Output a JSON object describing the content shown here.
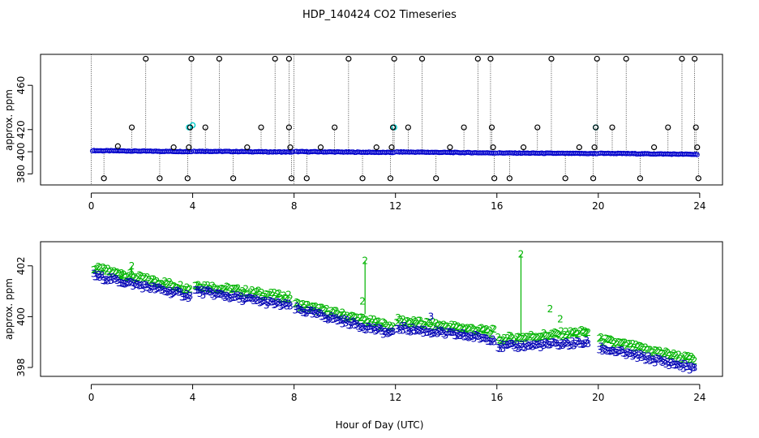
{
  "title": "HDP_140424  CO2 Timeseries",
  "xlabel": "Hour of Day (UTC)",
  "chart_data": [
    {
      "type": "scatter",
      "name": "top-panel",
      "ylabel": "approx. ppm",
      "xlim": [
        -2,
        24.9
      ],
      "ylim": [
        370,
        488
      ],
      "xticks": [
        0,
        4,
        8,
        12,
        16,
        20,
        24
      ],
      "yticks": [
        380,
        420,
        460
      ],
      "ytick_labels": [
        {
          "value": 380,
          "label": "380"
        },
        {
          "value": 400,
          "label": "400"
        },
        {
          "value": 420,
          "label": "420"
        },
        {
          "value": 460,
          "label": "460"
        }
      ],
      "baseline_series": {
        "name": "blue",
        "color": "#0000cc",
        "segments": [
          {
            "x0": 0.05,
            "x1": 3.95,
            "y0": 401.0,
            "y1": 400.1
          },
          {
            "x0": 4.05,
            "x1": 7.95,
            "y0": 400.5,
            "y1": 399.7
          },
          {
            "x0": 8.05,
            "x1": 11.95,
            "y0": 400.1,
            "y1": 399.3
          },
          {
            "x0": 12.05,
            "x1": 15.95,
            "y0": 399.8,
            "y1": 398.9
          },
          {
            "x0": 16.05,
            "x1": 19.95,
            "y0": 398.9,
            "y1": 398.3
          },
          {
            "x0": 20.05,
            "x1": 23.9,
            "y0": 398.6,
            "y1": 397.6
          }
        ]
      },
      "cyan_points": [
        {
          "x": 3.85,
          "y": 422
        },
        {
          "x": 4.0,
          "y": 424
        },
        {
          "x": 11.95,
          "y": 422
        },
        {
          "x": 19.9,
          "y": 422
        }
      ],
      "black_points": [
        {
          "x": 0.5,
          "y": 376
        },
        {
          "x": 1.05,
          "y": 405
        },
        {
          "x": 1.6,
          "y": 422
        },
        {
          "x": 2.15,
          "y": 484
        },
        {
          "x": 2.7,
          "y": 376
        },
        {
          "x": 3.25,
          "y": 404
        },
        {
          "x": 3.8,
          "y": 376
        },
        {
          "x": 3.85,
          "y": 404
        },
        {
          "x": 3.9,
          "y": 422
        },
        {
          "x": 3.95,
          "y": 484
        },
        {
          "x": 4.5,
          "y": 422
        },
        {
          "x": 5.05,
          "y": 484
        },
        {
          "x": 5.6,
          "y": 376
        },
        {
          "x": 6.15,
          "y": 404
        },
        {
          "x": 6.7,
          "y": 422
        },
        {
          "x": 7.25,
          "y": 484
        },
        {
          "x": 7.8,
          "y": 484
        },
        {
          "x": 7.8,
          "y": 422
        },
        {
          "x": 7.85,
          "y": 404
        },
        {
          "x": 7.9,
          "y": 376
        },
        {
          "x": 8.5,
          "y": 376
        },
        {
          "x": 9.05,
          "y": 404
        },
        {
          "x": 9.6,
          "y": 422
        },
        {
          "x": 10.15,
          "y": 484
        },
        {
          "x": 10.7,
          "y": 376
        },
        {
          "x": 11.25,
          "y": 404
        },
        {
          "x": 11.8,
          "y": 376
        },
        {
          "x": 11.85,
          "y": 404
        },
        {
          "x": 11.9,
          "y": 422
        },
        {
          "x": 11.95,
          "y": 484
        },
        {
          "x": 12.5,
          "y": 422
        },
        {
          "x": 13.05,
          "y": 484
        },
        {
          "x": 13.6,
          "y": 376
        },
        {
          "x": 14.15,
          "y": 404
        },
        {
          "x": 14.7,
          "y": 422
        },
        {
          "x": 15.25,
          "y": 484
        },
        {
          "x": 15.75,
          "y": 484
        },
        {
          "x": 15.8,
          "y": 422
        },
        {
          "x": 15.85,
          "y": 404
        },
        {
          "x": 15.9,
          "y": 376
        },
        {
          "x": 16.5,
          "y": 376
        },
        {
          "x": 17.05,
          "y": 404
        },
        {
          "x": 17.6,
          "y": 422
        },
        {
          "x": 18.15,
          "y": 484
        },
        {
          "x": 18.7,
          "y": 376
        },
        {
          "x": 19.25,
          "y": 404
        },
        {
          "x": 19.8,
          "y": 376
        },
        {
          "x": 19.85,
          "y": 404
        },
        {
          "x": 19.9,
          "y": 422
        },
        {
          "x": 19.95,
          "y": 484
        },
        {
          "x": 20.55,
          "y": 422
        },
        {
          "x": 21.1,
          "y": 484
        },
        {
          "x": 21.65,
          "y": 376
        },
        {
          "x": 22.2,
          "y": 404
        },
        {
          "x": 22.75,
          "y": 422
        },
        {
          "x": 23.3,
          "y": 484
        },
        {
          "x": 23.8,
          "y": 484
        },
        {
          "x": 23.85,
          "y": 422
        },
        {
          "x": 23.9,
          "y": 404
        },
        {
          "x": 23.95,
          "y": 376
        }
      ]
    },
    {
      "type": "scatter",
      "name": "bottom-panel",
      "ylabel": "approx. ppm",
      "xlim": [
        -2,
        24.9
      ],
      "ylim": [
        397.65,
        402.95
      ],
      "xticks": [
        0,
        4,
        8,
        12,
        16,
        20,
        24
      ],
      "yticks": [
        398,
        400,
        402
      ],
      "series": [
        {
          "name": "2",
          "marker": "2",
          "color": "#00b400",
          "segments": [
            {
              "x0": 0.1,
              "x1": 3.9,
              "y0": 401.9,
              "y1": 401.1
            },
            {
              "x0": 4.1,
              "x1": 7.85,
              "y0": 401.25,
              "y1": 400.75
            },
            {
              "x0": 8.05,
              "x1": 11.9,
              "y0": 400.5,
              "y1": 399.6
            },
            {
              "x0": 12.05,
              "x1": 15.9,
              "y0": 399.85,
              "y1": 399.4
            },
            {
              "x0": 16.05,
              "x1": 19.6,
              "y0": 399.1,
              "y1": 399.4
            },
            {
              "x0": 20.05,
              "x1": 23.8,
              "y0": 399.1,
              "y1": 398.3
            }
          ],
          "extra_points": [
            {
              "x": 1.6,
              "y": 402.0
            },
            {
              "x": 1.2,
              "y": 401.7
            },
            {
              "x": 10.8,
              "y": 402.2
            },
            {
              "x": 10.7,
              "y": 400.6
            },
            {
              "x": 16.95,
              "y": 402.45
            },
            {
              "x": 18.1,
              "y": 400.3
            },
            {
              "x": 18.5,
              "y": 399.9
            },
            {
              "x": 19.5,
              "y": 399.35
            }
          ]
        },
        {
          "name": "3",
          "marker": "3",
          "color": "#0000b4",
          "segments": [
            {
              "x0": 0.1,
              "x1": 3.9,
              "y0": 401.6,
              "y1": 400.8
            },
            {
              "x0": 4.1,
              "x1": 7.85,
              "y0": 401.0,
              "y1": 400.4
            },
            {
              "x0": 8.05,
              "x1": 11.9,
              "y0": 400.3,
              "y1": 399.3
            },
            {
              "x0": 12.05,
              "x1": 15.9,
              "y0": 399.55,
              "y1": 399.1
            },
            {
              "x0": 16.05,
              "x1": 19.6,
              "y0": 398.8,
              "y1": 398.95
            },
            {
              "x0": 20.05,
              "x1": 23.8,
              "y0": 398.75,
              "y1": 397.95
            }
          ],
          "extra_points": [
            {
              "x": 13.4,
              "y": 400.0
            }
          ]
        }
      ]
    }
  ]
}
